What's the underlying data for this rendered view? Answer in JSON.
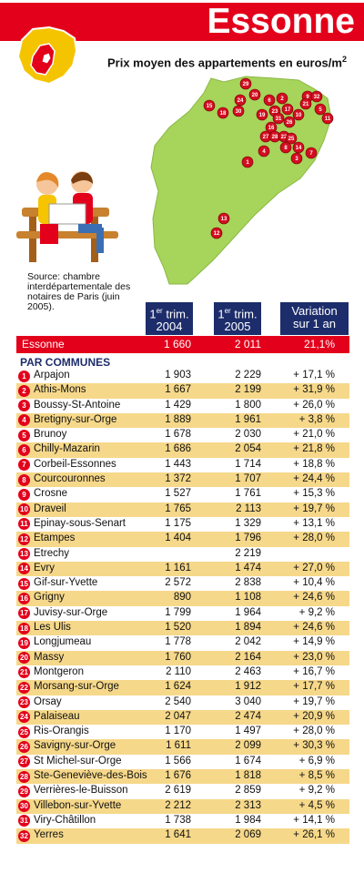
{
  "header": {
    "title": "Essonne",
    "subtitle": "Prix moyen des appartements en euros/m",
    "subtitle_sup": "2"
  },
  "source": "Source: chambre interdépartementale des notaires de Paris (juin 2005).",
  "columns": {
    "c2004_pre": "1",
    "c2004_sup": "er",
    "c2004_mid": " trim.",
    "c2004_year": "2004",
    "c2005_pre": "1",
    "c2005_sup": "er",
    "c2005_mid": " trim.",
    "c2005_year": "2005",
    "variation_l1": "Variation",
    "variation_l2": "sur 1 an"
  },
  "essonne": {
    "label": "Essonne",
    "v2004": "1 660",
    "v2005": "2 011",
    "variation": "21,1%"
  },
  "section_label": "PAR COMMUNES",
  "communes": [
    {
      "num": "1",
      "name": "Arpajon",
      "v2004": "1 903",
      "v2005": "2 229",
      "variation": "+ 17,1 %"
    },
    {
      "num": "2",
      "name": "Athis-Mons",
      "v2004": "1 667",
      "v2005": "2 199",
      "variation": "+ 31,9 %"
    },
    {
      "num": "3",
      "name": "Boussy-St-Antoine",
      "v2004": "1 429",
      "v2005": "1 800",
      "variation": "+ 26,0 %"
    },
    {
      "num": "4",
      "name": "Bretigny-sur-Orge",
      "v2004": "1 889",
      "v2005": "1 961",
      "variation": "+ 3,8 %"
    },
    {
      "num": "5",
      "name": "Brunoy",
      "v2004": "1 678",
      "v2005": "2 030",
      "variation": "+ 21,0 %"
    },
    {
      "num": "6",
      "name": "Chilly-Mazarin",
      "v2004": "1 686",
      "v2005": "2 054",
      "variation": "+ 21,8 %"
    },
    {
      "num": "7",
      "name": "Corbeil-Essonnes",
      "v2004": "1 443",
      "v2005": "1 714",
      "variation": "+ 18,8 %"
    },
    {
      "num": "8",
      "name": "Courcouronnes",
      "v2004": "1 372",
      "v2005": "1 707",
      "variation": "+ 24,4 %"
    },
    {
      "num": "9",
      "name": "Crosne",
      "v2004": "1 527",
      "v2005": "1 761",
      "variation": "+ 15,3 %"
    },
    {
      "num": "10",
      "name": "Draveil",
      "v2004": "1 765",
      "v2005": "2 113",
      "variation": "+ 19,7 %"
    },
    {
      "num": "11",
      "name": "Epinay-sous-Senart",
      "v2004": "1 175",
      "v2005": "1 329",
      "variation": "+ 13,1 %"
    },
    {
      "num": "12",
      "name": "Etampes",
      "v2004": "1 404",
      "v2005": "1 796",
      "variation": "+ 28,0  %"
    },
    {
      "num": "13",
      "name": "Etrechy",
      "v2004": "",
      "v2005": "2 219",
      "variation": ""
    },
    {
      "num": "14",
      "name": "Evry",
      "v2004": "1 161",
      "v2005": "1 474",
      "variation": "+ 27,0 %"
    },
    {
      "num": "15",
      "name": "Gif-sur-Yvette",
      "v2004": "2 572",
      "v2005": "2 838",
      "variation": "+ 10,4 %"
    },
    {
      "num": "16",
      "name": "Grigny",
      "v2004": "890",
      "v2005": "1 108",
      "variation": "+ 24,6 %"
    },
    {
      "num": "17",
      "name": "Juvisy-sur-Orge",
      "v2004": "1 799",
      "v2005": "1 964",
      "variation": "+ 9,2 %"
    },
    {
      "num": "18",
      "name": "Les Ulis",
      "v2004": "1 520",
      "v2005": "1 894",
      "variation": "+ 24,6 %"
    },
    {
      "num": "19",
      "name": "Longjumeau",
      "v2004": "1 778",
      "v2005": "2 042",
      "variation": "+ 14,9 %"
    },
    {
      "num": "20",
      "name": "Massy",
      "v2004": "1 760",
      "v2005": "2 164",
      "variation": "+ 23,0 %"
    },
    {
      "num": "21",
      "name": "Montgeron",
      "v2004": "2 110",
      "v2005": "2 463",
      "variation": "+ 16,7 %"
    },
    {
      "num": "22",
      "name": "Morsang-sur-Orge",
      "v2004": "1 624",
      "v2005": "1 912",
      "variation": "+ 17,7 %"
    },
    {
      "num": "23",
      "name": "Orsay",
      "v2004": "2 540",
      "v2005": "3 040",
      "variation": "+ 19,7 %"
    },
    {
      "num": "24",
      "name": "Palaiseau",
      "v2004": "2 047",
      "v2005": "2 474",
      "variation": "+ 20,9 %"
    },
    {
      "num": "25",
      "name": "Ris-Orangis",
      "v2004": "1 170",
      "v2005": "1 497",
      "variation": "+ 28,0 %"
    },
    {
      "num": "26",
      "name": "Savigny-sur-Orge",
      "v2004": "1 611",
      "v2005": "2 099",
      "variation": "+ 30,3 %"
    },
    {
      "num": "27",
      "name": "St Michel-sur-Orge",
      "v2004": "1 566",
      "v2005": "1 674",
      "variation": "+ 6,9 %"
    },
    {
      "num": "28",
      "name": "Ste-Geneviève-des-Bois",
      "v2004": "1 676",
      "v2005": "1 818",
      "variation": "+ 8,5 %"
    },
    {
      "num": "29",
      "name": "Verrières-le-Buisson",
      "v2004": "2 619",
      "v2005": "2 859",
      "variation": "+ 9,2 %"
    },
    {
      "num": "30",
      "name": "Villebon-sur-Yvette",
      "v2004": "2 212",
      "v2005": "2 313",
      "variation": "+ 4,5 %"
    },
    {
      "num": "31",
      "name": "Viry-Châtillon",
      "v2004": "1 738",
      "v2005": "1 984",
      "variation": "+ 14,1 %"
    },
    {
      "num": "32",
      "name": "Yerres",
      "v2004": "1 641",
      "v2005": "2 069",
      "variation": "+ 26,1 %"
    }
  ],
  "map_pins": [
    "29",
    "20",
    "2",
    "6",
    "9",
    "32",
    "15",
    "18",
    "30",
    "24",
    "19",
    "23",
    "5",
    "17",
    "10",
    "11",
    "21",
    "31",
    "26",
    "16",
    "27",
    "28",
    "22",
    "25",
    "4",
    "8",
    "14",
    "3",
    "7",
    "1",
    "13",
    "12"
  ],
  "colors": {
    "red": "#e3001b",
    "navy": "#1d2d6b",
    "stripe": "#f6d88a",
    "map_green": "#a7d45a"
  }
}
